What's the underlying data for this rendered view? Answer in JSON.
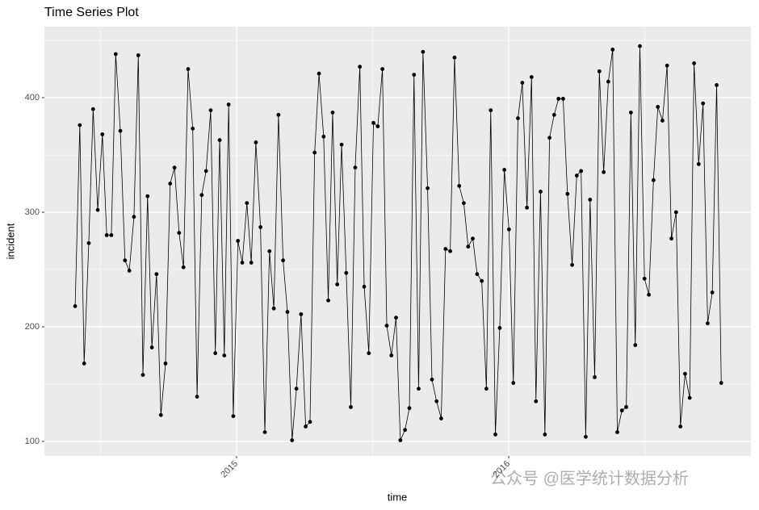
{
  "chart_data": {
    "type": "line",
    "title": "Time Series Plot",
    "x_label": "time",
    "y_label": "incident",
    "watermark": "公众号 @医学统计数据分析",
    "x": [
      2014.407,
      2014.424,
      2014.44,
      2014.457,
      2014.473,
      2014.49,
      2014.507,
      2014.523,
      2014.54,
      2014.556,
      2014.573,
      2014.59,
      2014.606,
      2014.623,
      2014.639,
      2014.656,
      2014.673,
      2014.689,
      2014.706,
      2014.722,
      2014.739,
      2014.756,
      2014.772,
      2014.789,
      2014.805,
      2014.822,
      2014.839,
      2014.855,
      2014.872,
      2014.888,
      2014.905,
      2014.922,
      2014.938,
      2014.955,
      2014.971,
      2014.988,
      2015.005,
      2015.021,
      2015.038,
      2015.054,
      2015.071,
      2015.088,
      2015.104,
      2015.121,
      2015.137,
      2015.154,
      2015.171,
      2015.187,
      2015.204,
      2015.22,
      2015.237,
      2015.254,
      2015.27,
      2015.287,
      2015.303,
      2015.32,
      2015.337,
      2015.353,
      2015.37,
      2015.386,
      2015.403,
      2015.42,
      2015.436,
      2015.453,
      2015.469,
      2015.486,
      2015.503,
      2015.519,
      2015.536,
      2015.552,
      2015.569,
      2015.586,
      2015.602,
      2015.619,
      2015.635,
      2015.652,
      2015.669,
      2015.685,
      2015.702,
      2015.718,
      2015.735,
      2015.752,
      2015.768,
      2015.785,
      2015.801,
      2015.818,
      2015.835,
      2015.851,
      2015.868,
      2015.884,
      2015.901,
      2015.918,
      2015.934,
      2015.951,
      2015.967,
      2015.984,
      2016.001,
      2016.017,
      2016.034,
      2016.05,
      2016.067,
      2016.084,
      2016.1,
      2016.117,
      2016.133,
      2016.15,
      2016.167,
      2016.183,
      2016.2,
      2016.216,
      2016.233,
      2016.25,
      2016.266,
      2016.283,
      2016.299,
      2016.316,
      2016.333,
      2016.349,
      2016.366,
      2016.382,
      2016.399,
      2016.416,
      2016.432,
      2016.449,
      2016.465,
      2016.482,
      2016.499,
      2016.515,
      2016.532,
      2016.548,
      2016.565,
      2016.582,
      2016.598,
      2016.615,
      2016.631,
      2016.648,
      2016.665,
      2016.681,
      2016.698,
      2016.714,
      2016.731,
      2016.748,
      2016.764,
      2016.781
    ],
    "values": [
      218,
      376,
      168,
      273,
      390,
      302,
      368,
      280,
      280,
      438,
      371,
      258,
      249,
      296,
      437,
      158,
      314,
      182,
      246,
      123,
      168,
      325,
      339,
      282,
      252,
      425,
      373,
      139,
      315,
      336,
      389,
      177,
      363,
      175,
      394,
      122,
      275,
      256,
      308,
      256,
      361,
      287,
      108,
      266,
      216,
      385,
      258,
      213,
      101,
      146,
      211,
      113,
      117,
      352,
      421,
      366,
      223,
      387,
      237,
      359,
      247,
      130,
      339,
      427,
      235,
      177,
      378,
      375,
      425,
      201,
      175,
      208,
      101,
      110,
      129,
      420,
      146,
      440,
      321,
      154,
      135,
      120,
      268,
      266,
      435,
      323,
      308,
      270,
      277,
      246,
      240,
      146,
      389,
      106,
      199,
      337,
      285,
      151,
      382,
      413,
      304,
      418,
      135,
      318,
      106,
      365,
      385,
      399,
      399,
      316,
      254,
      332,
      336,
      104,
      311,
      156,
      423,
      335,
      414,
      442,
      108,
      127,
      130,
      387,
      184,
      445,
      242,
      228,
      328,
      392,
      380,
      428,
      277,
      300,
      113,
      159,
      138,
      430,
      342,
      395,
      203,
      230,
      411,
      151
    ],
    "color": "#000000",
    "xlim": [
      2014.294,
      2016.89
    ],
    "xticks": [
      2015,
      2016
    ],
    "ylim": [
      87.3,
      462
    ],
    "yticks": [
      100,
      200,
      300,
      400
    ],
    "x_minor_grid": [
      2014.5,
      2015.5,
      2016.5
    ],
    "y_minor_grid": [
      150,
      250,
      350,
      450
    ],
    "grid": true
  }
}
